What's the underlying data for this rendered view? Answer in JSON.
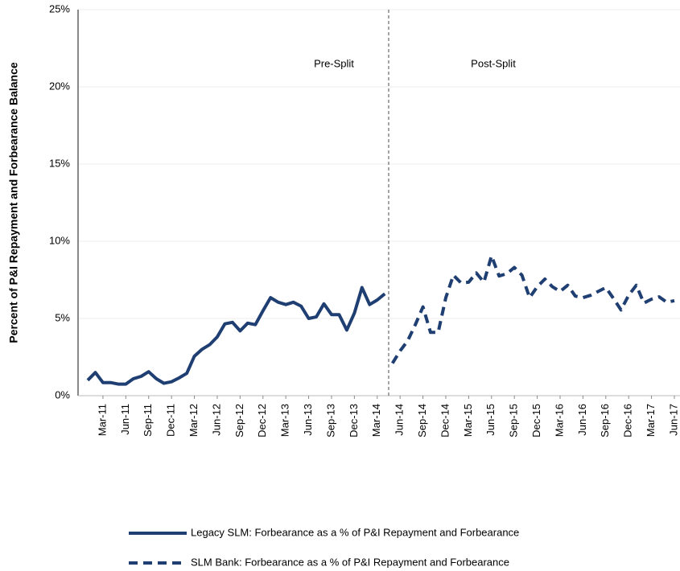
{
  "chart_data": {
    "type": "line",
    "y_label": "Percent of P&I Repayment and Forbearance Balance",
    "annotations": [
      "Pre-Split",
      "Post-Split"
    ],
    "categories": [
      null,
      null,
      "Mar-11",
      null,
      null,
      "Jun-11",
      null,
      null,
      "Sep-11",
      null,
      null,
      "Dec-11",
      null,
      null,
      "Mar-12",
      null,
      null,
      "Jun-12",
      null,
      null,
      "Sep-12",
      null,
      null,
      "Dec-12",
      null,
      null,
      "Mar-13",
      null,
      null,
      "Jun-13",
      null,
      null,
      "Sep-13",
      null,
      null,
      "Dec-13",
      null,
      null,
      "Mar-14",
      null,
      null,
      "Jun-14",
      null,
      null,
      "Sep-14",
      null,
      null,
      "Dec-14",
      null,
      null,
      "Mar-15",
      null,
      null,
      "Jun-15",
      null,
      null,
      "Sep-15",
      null,
      null,
      "Dec-15",
      null,
      null,
      "Mar-16",
      null,
      null,
      "Jun-16",
      null,
      null,
      "Sep-16",
      null,
      null,
      "Dec-16",
      null,
      null,
      "Mar-17",
      null,
      null,
      "Jun-17"
    ],
    "series": [
      {
        "name": "Legacy SLM: Forbearance as a % of P&I Repayment and Forbearance",
        "color": "#1f3f73",
        "dashed": false,
        "values": [
          1.0,
          1.5,
          0.85,
          0.85,
          0.75,
          0.75,
          1.1,
          1.25,
          1.55,
          1.1,
          0.8,
          0.9,
          1.15,
          1.45,
          2.55,
          3.0,
          3.3,
          3.8,
          4.65,
          4.75,
          4.2,
          4.7,
          4.6,
          5.5,
          6.35,
          6.05,
          5.9,
          6.05,
          5.8,
          5.0,
          5.1,
          5.95,
          5.25,
          5.25,
          4.25,
          5.35,
          7.0,
          5.9,
          6.2,
          6.6,
          null,
          null,
          null,
          null,
          null,
          null,
          null,
          null,
          null,
          null,
          null,
          null,
          null,
          null,
          null,
          null,
          null,
          null,
          null,
          null,
          null,
          null,
          null,
          null,
          null,
          null,
          null,
          null,
          null,
          null,
          null,
          null,
          null,
          null,
          null,
          null,
          null,
          null
        ]
      },
      {
        "name": "SLM Bank: Forbearance as a % of P&I Repayment and Forbearance",
        "color": "#1f3f73",
        "dashed": true,
        "values": [
          null,
          null,
          null,
          null,
          null,
          null,
          null,
          null,
          null,
          null,
          null,
          null,
          null,
          null,
          null,
          null,
          null,
          null,
          null,
          null,
          null,
          null,
          null,
          null,
          null,
          null,
          null,
          null,
          null,
          null,
          null,
          null,
          null,
          null,
          null,
          null,
          null,
          null,
          null,
          null,
          2.1,
          2.9,
          3.55,
          4.6,
          5.75,
          4.1,
          4.1,
          6.35,
          7.8,
          7.3,
          7.35,
          7.95,
          7.35,
          9.05,
          7.75,
          7.9,
          8.3,
          7.8,
          6.35,
          7.05,
          7.55,
          7.05,
          6.75,
          7.15,
          6.45,
          6.35,
          6.5,
          6.75,
          7.0,
          6.3,
          5.55,
          6.5,
          7.15,
          6.0,
          6.25,
          6.4,
          6.05,
          6.15
        ]
      }
    ],
    "ylim": [
      0,
      25
    ],
    "yticks": [
      {
        "value": 0,
        "label": "0%"
      },
      {
        "value": 5,
        "label": "5%"
      },
      {
        "value": 10,
        "label": "10%"
      },
      {
        "value": 15,
        "label": "15%"
      },
      {
        "value": 20,
        "label": "20%"
      },
      {
        "value": 25,
        "label": "25%"
      }
    ],
    "grid": true
  }
}
